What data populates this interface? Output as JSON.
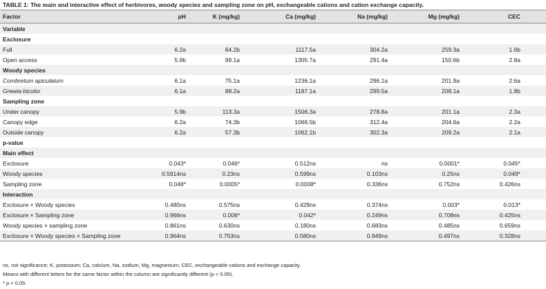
{
  "table": {
    "title": "TABLE 1: The main and interactive effect of herbivores, woody species and sampling zone on pH, exchangeable cations and cation exchange capacity.",
    "header": [
      "Factor",
      "pH",
      "K (mg/kg)",
      "Ca (mg/kg)",
      "Na (mg/kg)",
      "Mg (mg/kg)",
      "CEC"
    ],
    "rows": [
      {
        "cells": [
          "Variable"
        ],
        "section": true
      },
      {
        "cells": [
          "Exclosure"
        ],
        "section": true
      },
      {
        "cells": [
          "Full",
          "6.2a",
          "64.2b",
          "1117.5a",
          "304.2a",
          "259.3a",
          "1.6b"
        ]
      },
      {
        "cells": [
          "Open access",
          "5.9b",
          "99.1a",
          "1305.7a",
          "291.4a",
          "150.6b",
          "2.8a"
        ]
      },
      {
        "cells": [
          "Woody species"
        ],
        "section": true
      },
      {
        "cells": [
          "Combretum apiculatum",
          "6.1a",
          "75.1a",
          "1236.1a",
          "296.1a",
          "201.9a",
          "2.6a"
        ],
        "italic": true
      },
      {
        "cells": [
          "Grewia bicolor",
          "6.1a",
          "88.2a",
          "1187.1a",
          "299.5a",
          "208.1a",
          "1.8b"
        ],
        "italic": true
      },
      {
        "cells": [
          "Sampling zone"
        ],
        "section": true
      },
      {
        "cells": [
          "Under canopy",
          "5.9b",
          "113.3a",
          "1506.3a",
          "278.8a",
          "201.1a",
          "2.3a"
        ]
      },
      {
        "cells": [
          "Canopy edge",
          "6.2a",
          "74.3b",
          "1066.5b",
          "312.4a",
          "204.6a",
          "2.2a"
        ]
      },
      {
        "cells": [
          "Outside canopy",
          "6.2a",
          "57.3b",
          "1062.1b",
          "302.3a",
          "209.2a",
          "2.1a"
        ]
      },
      {
        "cells": [
          "p-value"
        ],
        "section": true
      },
      {
        "cells": [
          "Main effect"
        ],
        "section": true
      },
      {
        "cells": [
          "Exclosure",
          "0.043*",
          "0.046*",
          "0.512ns",
          "ns",
          "0.0001*",
          "0.045*"
        ]
      },
      {
        "cells": [
          "Woody species",
          "0.5914ns",
          "0.23ns",
          "0.599ns",
          "0.103ns",
          "0.25ns",
          "0.049*"
        ]
      },
      {
        "cells": [
          "Sampling zone",
          "0.048*",
          "0.0005*",
          "0.0008*",
          "0.336ns",
          "0.752ns",
          "0.426ns"
        ]
      },
      {
        "cells": [
          "Interaction"
        ],
        "section": true
      },
      {
        "cells": [
          "Exclosure × Woody species",
          "0.480ns",
          "0.575ns",
          "0.429ns",
          "0.374ns",
          "0.003*",
          "0.013*"
        ]
      },
      {
        "cells": [
          "Exclosure × Sampling zone",
          "0.966ns",
          "0.006*",
          "0.042*",
          "0.249ns",
          "0.708ns",
          "0.425ns"
        ]
      },
      {
        "cells": [
          "Woody species × sampling zone",
          "0.861ns",
          "0.630ns",
          "0.180ns",
          "0.683ns",
          "0.485ns",
          "0.659ns"
        ]
      },
      {
        "cells": [
          "Exclosure × Woody species × Sampling zone",
          "0.964ns",
          "0.753ns",
          "0.580ns",
          "0.949ns",
          "0.497ns",
          "0.328ns"
        ]
      }
    ],
    "notes": [
      "ns, not significance; K, potassium; Ca, calcium, Na, sodium, Mg, magnesium; CEC, exchangeable cations and exchange capacity.",
      "Means with different letters for the same factor within the column are significantly different (p < 0.05).",
      "* p < 0.05."
    ]
  }
}
